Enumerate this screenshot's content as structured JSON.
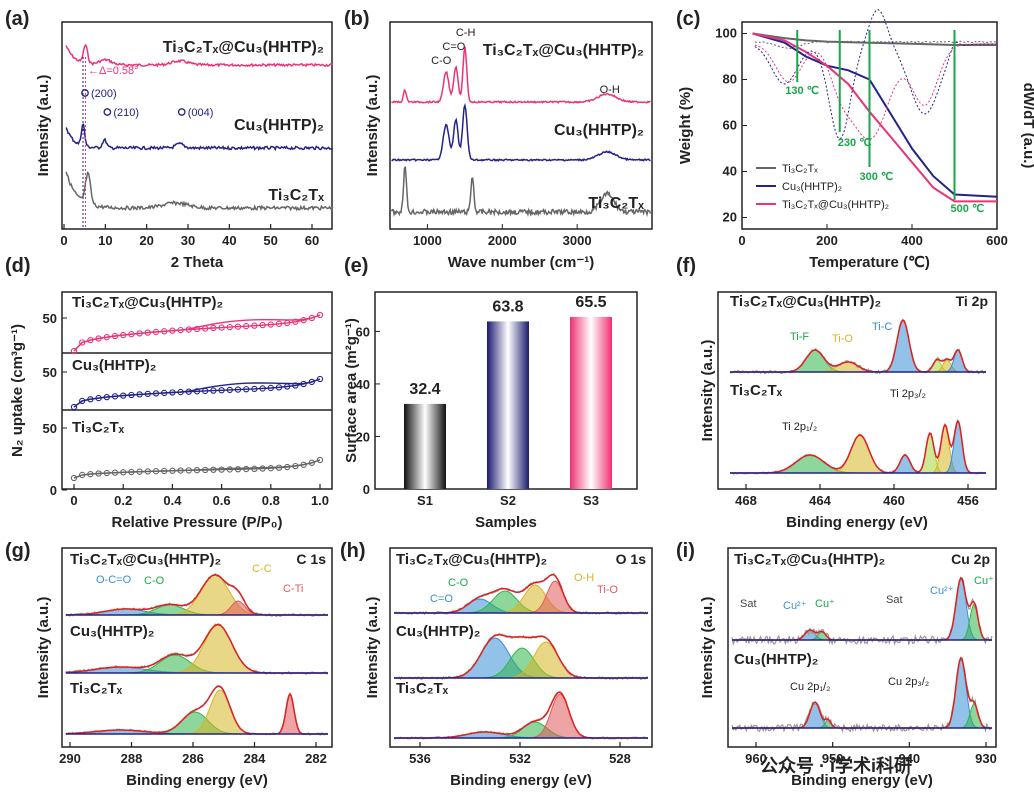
{
  "colors": {
    "composite": "#e8357a",
    "cu": "#23238a",
    "ti": "#666666",
    "green": "#1aa64a",
    "fit": "#e02020",
    "raw": "#999999",
    "pink": "#e8357a"
  },
  "watermark": "公众号 · i学术i科研",
  "panels": {
    "a": {
      "label": "(a)",
      "xlabel": "2 Theta",
      "ylabel": "Intensity (a.u.)",
      "xticks": [
        "0",
        "10",
        "20",
        "30",
        "40",
        "50",
        "60"
      ],
      "series": [
        "Ti₃C₂Tₓ@Cu₃(HHTP)₂",
        "Cu₃(HHTP)₂",
        "Ti₃C₂Tₓ"
      ],
      "annotations": [
        "←Δ=0.58°",
        "(200)",
        "(210)",
        "(004)"
      ]
    },
    "b": {
      "label": "(b)",
      "xlabel": "Wave number (cm⁻¹)",
      "ylabel": "Intensity (a.u.)",
      "xticks": [
        "1000",
        "2000",
        "3000"
      ],
      "series": [
        "Ti₃C₂Tₓ@Cu₃(HHTP)₂",
        "Cu₃(HHTP)₂",
        "Ti₃C₂Tₓ"
      ],
      "annotations": [
        "C-O",
        "C=O",
        "C-H",
        "O-H"
      ]
    },
    "c": {
      "label": "(c)",
      "xlabel": "Temperature (℃)",
      "ylabel": "Weight (%)",
      "ylabel2": "dW/dT (a.u.)",
      "xticks": [
        "0",
        "200",
        "400",
        "600"
      ],
      "yticks": [
        "20",
        "40",
        "60",
        "80",
        "100"
      ],
      "legend": [
        "Ti₃C₂Tₓ",
        "Cu₃(HHTP)₂",
        "Ti₃C₂Tₓ@Cu₃(HHTP)₂"
      ],
      "annotations": [
        "130 ℃",
        "230 ℃",
        "300 ℃",
        "500 ℃"
      ]
    },
    "d": {
      "label": "(d)",
      "xlabel": "Relative Pressure (P/P₀)",
      "ylabel": "N₂ uptake (cm³g⁻¹)",
      "xticks": [
        "0",
        "0.2",
        "0.4",
        "0.6",
        "0.8",
        "1.0"
      ],
      "series": [
        "Ti₃C₂Tₓ@Cu₃(HHTP)₂",
        "Cu₃(HHTP)₂",
        "Ti₃C₂Tₓ"
      ],
      "yticks_a": [
        "50"
      ],
      "yticks_b": [
        "50"
      ],
      "yticks_c": [
        "50",
        "0"
      ]
    },
    "e": {
      "label": "(e)",
      "xlabel": "Samples",
      "ylabel": "Surface area (m²g⁻¹)"
    },
    "f": {
      "label": "(f)",
      "xlabel": "Binding energy (eV)",
      "ylabel": "Intensity (a.u.)",
      "corner": "Ti 2p",
      "xticks": [
        "468",
        "464",
        "460",
        "456"
      ],
      "series": [
        "Ti₃C₂Tₓ@Cu₃(HHTP)₂",
        "Ti₃C₂Tₓ"
      ],
      "annotations": [
        "Ti-F",
        "Ti-O",
        "Ti-C",
        "Ti 2p₁/₂",
        "Ti 2p₃/₂"
      ]
    },
    "g": {
      "label": "(g)",
      "xlabel": "Binding energy (eV)",
      "ylabel": "Intensity (a.u.)",
      "corner": "C 1s",
      "xticks": [
        "290",
        "288",
        "286",
        "284",
        "282"
      ],
      "series": [
        "Ti₃C₂Tₓ@Cu₃(HHTP)₂",
        "Cu₃(HHTP)₂",
        "Ti₃C₂Tₓ"
      ],
      "annotations": [
        "O-C=O",
        "C-O",
        "C-C",
        "C-Ti"
      ]
    },
    "h": {
      "label": "(h)",
      "xlabel": "Binding energy (eV)",
      "ylabel": "Intensity (a.u.)",
      "corner": "O 1s",
      "xticks": [
        "536",
        "532",
        "528"
      ],
      "xticks_minor": [
        "534",
        "530"
      ],
      "series": [
        "Ti₃C₂Tₓ@Cu₃(HHTP)₂",
        "Cu₃(HHTP)₂",
        "Ti₃C₂Tₓ"
      ],
      "annotations": [
        "C-O",
        "C=O",
        "O-H",
        "Ti-O"
      ]
    },
    "i": {
      "label": "(i)",
      "xlabel": "Binding energy (eV)",
      "ylabel": "Intensity (a.u.)",
      "corner": "Cu 2p",
      "xticks": [
        "960",
        "950",
        "940",
        "930"
      ],
      "series": [
        "Ti₃C₂Tₓ@Cu₃(HHTP)₂",
        "Cu₃(HHTP)₂"
      ],
      "annotations": [
        "Sat",
        "Cu²⁺",
        "Cu⁺",
        "Sat",
        "Cu²⁺",
        "Cu⁺",
        "Cu 2p₁/₂",
        "Cu 2p₃/₂"
      ]
    }
  },
  "chart_data": [
    {
      "panel": "e",
      "type": "bar",
      "categories": [
        "S1",
        "S2",
        "S3"
      ],
      "values": [
        32.4,
        63.8,
        65.5
      ],
      "data_labels": [
        "32.4",
        "63.8",
        "65.5"
      ],
      "ylim": [
        0,
        75
      ],
      "yticks": [
        "0",
        "20",
        "40",
        "60"
      ],
      "xlabel": "Samples",
      "ylabel": "Surface area (m²g⁻¹)"
    },
    {
      "panel": "c",
      "type": "line",
      "xlabel": "Temperature (℃)",
      "ylabel": "Weight (%)",
      "xlim": [
        0,
        600
      ],
      "ylim": [
        15,
        105
      ],
      "series": [
        {
          "name": "Ti₃C₂Tₓ",
          "x": [
            25,
            100,
            150,
            200,
            300,
            400,
            500,
            600
          ],
          "y": [
            100,
            98,
            97,
            96.5,
            96,
            95.5,
            95,
            95
          ]
        },
        {
          "name": "Cu₃(HHTP)₂",
          "x": [
            25,
            100,
            150,
            200,
            250,
            300,
            350,
            400,
            450,
            500,
            600
          ],
          "y": [
            100,
            96,
            90,
            86,
            84,
            80,
            65,
            50,
            38,
            30,
            29
          ]
        },
        {
          "name": "Ti₃C₂Tₓ@Cu₃(HHTP)₂",
          "x": [
            25,
            100,
            150,
            200,
            250,
            300,
            350,
            400,
            450,
            500,
            600
          ],
          "y": [
            100,
            97,
            92,
            86,
            78,
            66,
            55,
            44,
            33,
            27,
            27
          ]
        }
      ]
    }
  ]
}
